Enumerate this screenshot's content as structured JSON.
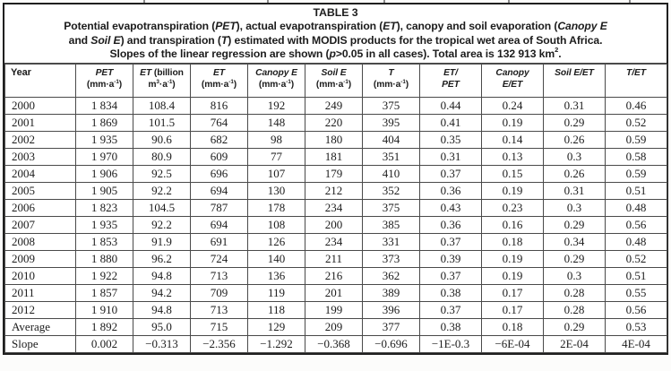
{
  "page": {
    "background": "#fcfcfb"
  },
  "table": {
    "colors": {
      "border_outer": "#1f1f1f",
      "border_inner": "#4a4a4a",
      "text": "#1c1c1c",
      "background": "#ffffff"
    },
    "caption": {
      "title": "TABLE 3",
      "segments": [
        {
          "t": "Potential evapotranspiration ("
        },
        {
          "t": "PET",
          "i": 1
        },
        {
          "t": "), actual evapotranspiration ("
        },
        {
          "t": "ET",
          "i": 1
        },
        {
          "t": "), canopy and soil evaporation ("
        },
        {
          "t": "Canopy E",
          "i": 1
        },
        {
          "br": 1
        },
        {
          "t": "and "
        },
        {
          "t": "Soil E",
          "i": 1
        },
        {
          "t": ") and transpiration ("
        },
        {
          "t": "T",
          "i": 1
        },
        {
          "t": ") estimated with MODIS products for the tropical wet area of South Africa."
        },
        {
          "br": 1
        },
        {
          "t": "Slopes of the linear regression are shown ("
        },
        {
          "t": "p",
          "i": 1
        },
        {
          "t": ">0.05 in all cases). Total area is 132 913 km"
        },
        {
          "t": "2",
          "sup": 1
        },
        {
          "t": "."
        }
      ]
    },
    "columns": [
      {
        "id": "year",
        "header": [
          {
            "t": "Year"
          }
        ]
      },
      {
        "id": "pet-mm",
        "header": [
          {
            "t": "PET",
            "i": 1
          },
          {
            "br": 1
          },
          {
            "t": "(mm·a"
          },
          {
            "t": "-1",
            "sup": 1
          },
          {
            "t": ")"
          }
        ]
      },
      {
        "id": "et-billion",
        "header": [
          {
            "t": "ET",
            "i": 1
          },
          {
            "t": " (billion"
          },
          {
            "br": 1
          },
          {
            "t": "m"
          },
          {
            "t": "3",
            "sup": 1
          },
          {
            "t": "·a"
          },
          {
            "t": "-1",
            "sup": 1
          },
          {
            "t": ")"
          }
        ]
      },
      {
        "id": "et-mm",
        "header": [
          {
            "t": "ET",
            "i": 1
          },
          {
            "br": 1
          },
          {
            "t": "(mm·a"
          },
          {
            "t": "-1",
            "sup": 1
          },
          {
            "t": ")"
          }
        ]
      },
      {
        "id": "canopy-e",
        "header": [
          {
            "t": "Canopy E",
            "i": 1
          },
          {
            "br": 1
          },
          {
            "t": "(mm·a"
          },
          {
            "t": "-1",
            "sup": 1
          },
          {
            "t": ")"
          }
        ]
      },
      {
        "id": "soil-e",
        "header": [
          {
            "t": "Soil E",
            "i": 1
          },
          {
            "br": 1
          },
          {
            "t": "(mm·a"
          },
          {
            "t": "-1",
            "sup": 1
          },
          {
            "t": ")"
          }
        ]
      },
      {
        "id": "t",
        "header": [
          {
            "t": "T",
            "i": 1
          },
          {
            "br": 1
          },
          {
            "t": "(mm·a"
          },
          {
            "t": "-1",
            "sup": 1
          },
          {
            "t": ")"
          }
        ]
      },
      {
        "id": "et-pet",
        "header": [
          {
            "t": "ET/",
            "i": 1
          },
          {
            "br": 1
          },
          {
            "t": "PET",
            "i": 1
          }
        ]
      },
      {
        "id": "canopy-e-et",
        "header": [
          {
            "t": "Canopy",
            "i": 1
          },
          {
            "br": 1
          },
          {
            "t": "E/ET",
            "i": 1
          }
        ]
      },
      {
        "id": "soil-e-et",
        "header": [
          {
            "t": "Soil E/ET",
            "i": 1
          }
        ]
      },
      {
        "id": "t-et",
        "header": [
          {
            "t": "T/ET",
            "i": 1
          }
        ]
      }
    ],
    "rows": [
      {
        "label": "2000",
        "values": [
          "1 834",
          "108.4",
          "816",
          "192",
          "249",
          "375",
          "0.44",
          "0.24",
          "0.31",
          "0.46"
        ]
      },
      {
        "label": "2001",
        "values": [
          "1 869",
          "101.5",
          "764",
          "148",
          "220",
          "395",
          "0.41",
          "0.19",
          "0.29",
          "0.52"
        ]
      },
      {
        "label": "2002",
        "values": [
          "1 935",
          "90.6",
          "682",
          "98",
          "180",
          "404",
          "0.35",
          "0.14",
          "0.26",
          "0.59"
        ]
      },
      {
        "label": "2003",
        "values": [
          "1 970",
          "80.9",
          "609",
          "77",
          "181",
          "351",
          "0.31",
          "0.13",
          "0.3",
          "0.58"
        ]
      },
      {
        "label": "2004",
        "values": [
          "1 906",
          "92.5",
          "696",
          "107",
          "179",
          "410",
          "0.37",
          "0.15",
          "0.26",
          "0.59"
        ]
      },
      {
        "label": "2005",
        "values": [
          "1 905",
          "92.2",
          "694",
          "130",
          "212",
          "352",
          "0.36",
          "0.19",
          "0.31",
          "0.51"
        ]
      },
      {
        "label": "2006",
        "values": [
          "1 823",
          "104.5",
          "787",
          "178",
          "234",
          "375",
          "0.43",
          "0.23",
          "0.3",
          "0.48"
        ]
      },
      {
        "label": "2007",
        "values": [
          "1 935",
          "92.2",
          "694",
          "108",
          "200",
          "385",
          "0.36",
          "0.16",
          "0.29",
          "0.56"
        ]
      },
      {
        "label": "2008",
        "values": [
          "1 853",
          "91.9",
          "691",
          "126",
          "234",
          "331",
          "0.37",
          "0.18",
          "0.34",
          "0.48"
        ]
      },
      {
        "label": "2009",
        "values": [
          "1 880",
          "96.2",
          "724",
          "140",
          "211",
          "373",
          "0.39",
          "0.19",
          "0.29",
          "0.52"
        ]
      },
      {
        "label": "2010",
        "values": [
          "1 922",
          "94.8",
          "713",
          "136",
          "216",
          "362",
          "0.37",
          "0.19",
          "0.3",
          "0.51"
        ]
      },
      {
        "label": "2011",
        "values": [
          "1 857",
          "94.2",
          "709",
          "119",
          "201",
          "389",
          "0.38",
          "0.17",
          "0.28",
          "0.55"
        ]
      },
      {
        "label": "2012",
        "values": [
          "1 910",
          "94.8",
          "713",
          "118",
          "199",
          "396",
          "0.37",
          "0.17",
          "0.28",
          "0.56"
        ]
      },
      {
        "label": "Average",
        "values": [
          "1 892",
          "95.0",
          "715",
          "129",
          "209",
          "377",
          "0.38",
          "0.18",
          "0.29",
          "0.53"
        ]
      },
      {
        "label": "Slope",
        "values": [
          "0.002",
          "−0.313",
          "−2.356",
          "−1.292",
          "−0.368",
          "−0.696",
          "−1E-0.3",
          "−6E-04",
          "2E-04",
          "4E-04"
        ]
      }
    ]
  }
}
